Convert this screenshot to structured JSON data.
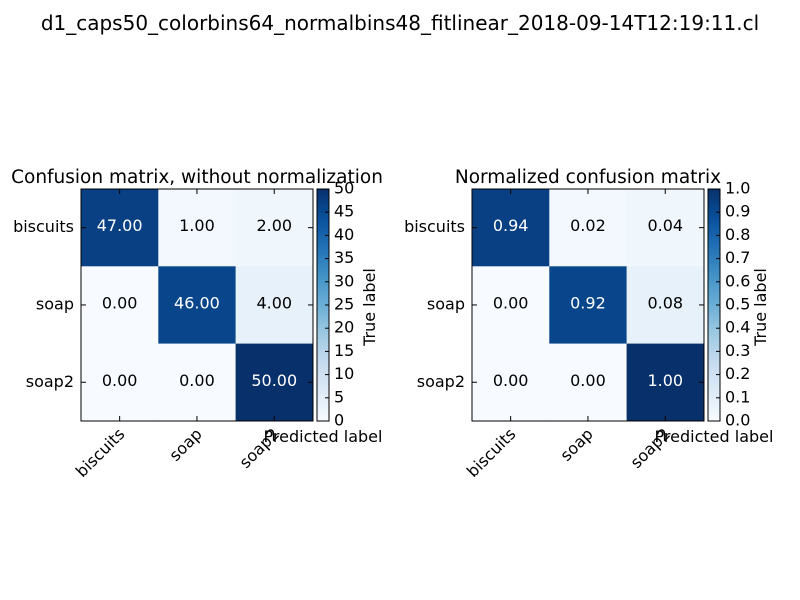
{
  "suptitle": "d1_caps50_colorbins64_normalbins48_fitlinear_2018-09-14T12:19:11.cl",
  "chart_data": [
    {
      "type": "heatmap",
      "title": "Confusion matrix, without normalization",
      "xlabel": "Predicted label",
      "ylabel": "True label",
      "row_labels": [
        "biscuits",
        "soap",
        "soap2"
      ],
      "col_labels": [
        "biscuits",
        "soap",
        "soap2"
      ],
      "values": [
        [
          47,
          1,
          2
        ],
        [
          0,
          46,
          4
        ],
        [
          0,
          0,
          50
        ]
      ],
      "cell_text": [
        [
          "47.00",
          "1.00",
          "2.00"
        ],
        [
          "0.00",
          "46.00",
          "4.00"
        ],
        [
          "0.00",
          "0.00",
          "50.00"
        ]
      ],
      "vmin": 0,
      "vmax": 50,
      "colorbar_ticks": [
        "0",
        "5",
        "10",
        "15",
        "20",
        "25",
        "30",
        "35",
        "40",
        "45",
        "50"
      ],
      "colormap": "Blues"
    },
    {
      "type": "heatmap",
      "title": "Normalized confusion matrix",
      "xlabel": "Predicted label",
      "ylabel": "True label",
      "row_labels": [
        "biscuits",
        "soap",
        "soap2"
      ],
      "col_labels": [
        "biscuits",
        "soap",
        "soap2"
      ],
      "values": [
        [
          0.94,
          0.02,
          0.04
        ],
        [
          0.0,
          0.92,
          0.08
        ],
        [
          0.0,
          0.0,
          1.0
        ]
      ],
      "cell_text": [
        [
          "0.94",
          "0.02",
          "0.04"
        ],
        [
          "0.00",
          "0.92",
          "0.08"
        ],
        [
          "0.00",
          "0.00",
          "1.00"
        ]
      ],
      "vmin": 0,
      "vmax": 1,
      "colorbar_ticks": [
        "0.0",
        "0.1",
        "0.2",
        "0.3",
        "0.4",
        "0.5",
        "0.6",
        "0.7",
        "0.8",
        "0.9",
        "1.0"
      ],
      "colormap": "Blues"
    }
  ]
}
